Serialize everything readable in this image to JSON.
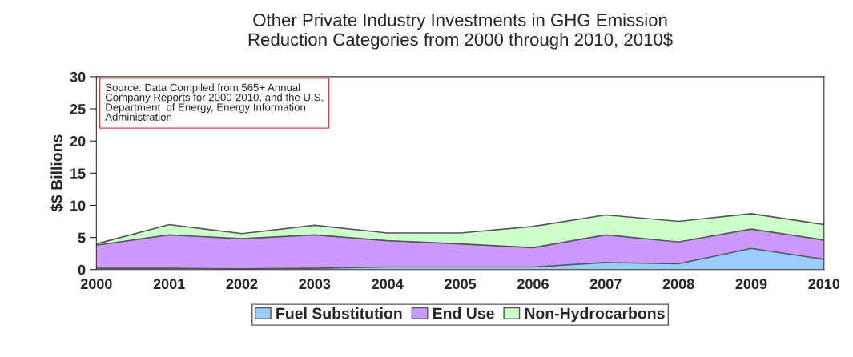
{
  "chart_data": {
    "type": "area",
    "stacked": true,
    "title": "Other Private Industry Investments in GHG Emission\nReduction Categories from 2000 through 2010, 2010$",
    "ylabel": "$$ Billions",
    "x": [
      2000,
      2001,
      2002,
      2003,
      2004,
      2005,
      2006,
      2007,
      2008,
      2009,
      2010
    ],
    "xlim": [
      2000,
      2010
    ],
    "xticks": [
      2000,
      2001,
      2002,
      2003,
      2004,
      2005,
      2006,
      2007,
      2008,
      2009,
      2010
    ],
    "ylim": [
      0,
      30
    ],
    "yticks": [
      0,
      5,
      10,
      15,
      20,
      25,
      30
    ],
    "grid": false,
    "legend": "bottom",
    "annotations": [
      "Source: Data Compiled from 565+ Annual\nCompany Reports for 2000-2010, and the U.S.\nDepartment  of Energy, Energy Information\nAdministration"
    ],
    "series": [
      {
        "name": "Fuel Substitution",
        "color": "#99ccff",
        "values": [
          0.2,
          0.2,
          0.1,
          0.2,
          0.4,
          0.4,
          0.4,
          1.1,
          0.9,
          3.3,
          1.6
        ]
      },
      {
        "name": "End Use",
        "color": "#cc99ff",
        "values": [
          3.6,
          5.2,
          4.7,
          5.2,
          4.1,
          3.6,
          3.0,
          4.3,
          3.4,
          3.0,
          3.0
        ]
      },
      {
        "name": "Non-Hydrocarbons",
        "color": "#ccffcc",
        "values": [
          0.2,
          1.6,
          0.8,
          1.5,
          1.2,
          1.7,
          3.3,
          3.1,
          3.2,
          2.4,
          2.4
        ]
      }
    ]
  }
}
